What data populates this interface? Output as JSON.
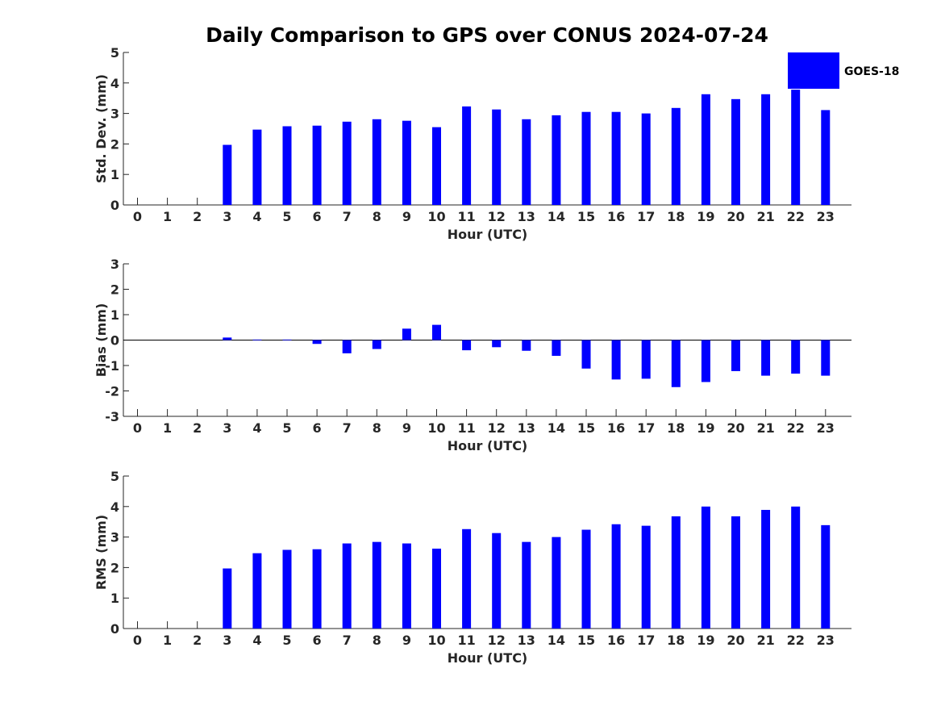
{
  "title": "Daily Comparison to GPS over CONUS 2024-07-24",
  "bar_color": "#0000FF",
  "chart_data": [
    {
      "type": "bar",
      "name": "std",
      "ylabel": "Std. Dev. (mm)",
      "xlabel": "Hour (UTC)",
      "categories": [
        "0",
        "1",
        "2",
        "3",
        "4",
        "5",
        "6",
        "7",
        "8",
        "9",
        "10",
        "11",
        "12",
        "13",
        "14",
        "15",
        "16",
        "17",
        "18",
        "19",
        "20",
        "21",
        "22",
        "23"
      ],
      "series": [
        {
          "name": "GOES-18",
          "values": [
            null,
            null,
            null,
            1.97,
            2.47,
            2.58,
            2.6,
            2.73,
            2.81,
            2.76,
            2.55,
            3.23,
            3.13,
            2.81,
            2.94,
            3.05,
            3.05,
            3.0,
            3.18,
            3.63,
            3.47,
            3.63,
            3.78,
            3.11
          ]
        }
      ],
      "ylim": [
        0,
        5
      ],
      "yticks": [
        0,
        1,
        2,
        3,
        4,
        5
      ],
      "legend": "top-right"
    },
    {
      "type": "bar",
      "name": "bias",
      "ylabel": "Bias (mm)",
      "xlabel": "Hour (UTC)",
      "categories": [
        "0",
        "1",
        "2",
        "3",
        "4",
        "5",
        "6",
        "7",
        "8",
        "9",
        "10",
        "11",
        "12",
        "13",
        "14",
        "15",
        "16",
        "17",
        "18",
        "19",
        "20",
        "21",
        "22",
        "23"
      ],
      "series": [
        {
          "name": "GOES-18",
          "values": [
            null,
            null,
            null,
            0.1,
            0.02,
            0.02,
            -0.15,
            -0.52,
            -0.35,
            0.45,
            0.6,
            -0.4,
            -0.28,
            -0.42,
            -0.62,
            -1.12,
            -1.55,
            -1.52,
            -1.85,
            -1.65,
            -1.22,
            -1.4,
            -1.32,
            -1.4
          ]
        }
      ],
      "ylim": [
        -3,
        3
      ],
      "yticks": [
        -3,
        -2,
        -1,
        0,
        1,
        2,
        3
      ],
      "zero_line": true
    },
    {
      "type": "bar",
      "name": "rms",
      "ylabel": "RMS (mm)",
      "xlabel": "Hour (UTC)",
      "categories": [
        "0",
        "1",
        "2",
        "3",
        "4",
        "5",
        "6",
        "7",
        "8",
        "9",
        "10",
        "11",
        "12",
        "13",
        "14",
        "15",
        "16",
        "17",
        "18",
        "19",
        "20",
        "21",
        "22",
        "23"
      ],
      "series": [
        {
          "name": "GOES-18",
          "values": [
            null,
            null,
            null,
            1.97,
            2.47,
            2.58,
            2.6,
            2.79,
            2.84,
            2.79,
            2.62,
            3.26,
            3.13,
            2.84,
            3.0,
            3.24,
            3.42,
            3.37,
            3.68,
            4.0,
            3.68,
            3.89,
            4.0,
            3.39
          ]
        }
      ],
      "ylim": [
        0,
        5
      ],
      "yticks": [
        0,
        1,
        2,
        3,
        4,
        5
      ]
    }
  ]
}
